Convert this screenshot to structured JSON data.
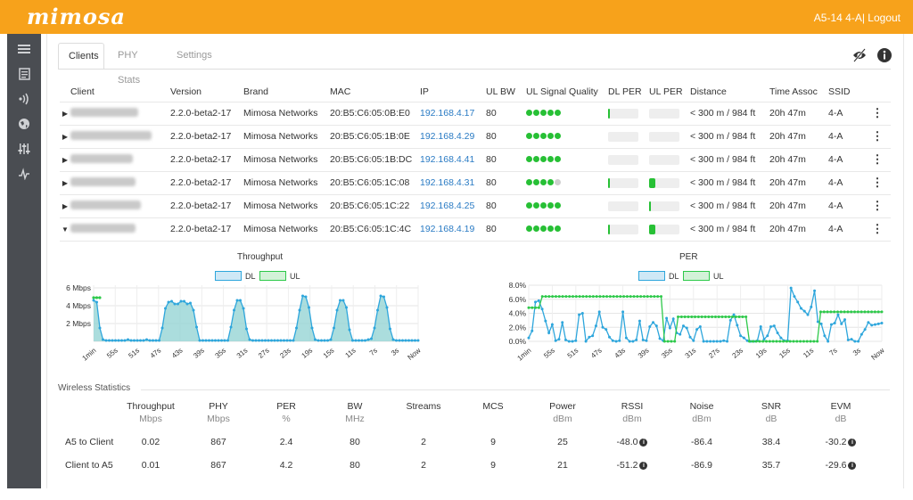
{
  "app": {
    "logo": "mimosa",
    "device": "A5-14 4-A",
    "separator": "|",
    "logout": "Logout"
  },
  "tabs": [
    "Clients",
    "PHY Stats",
    "Settings"
  ],
  "clients": {
    "headers": [
      "Client",
      "Version",
      "Brand",
      "MAC",
      "IP",
      "UL BW",
      "UL Signal Quality",
      "DL PER",
      "UL PER",
      "Distance",
      "Time Assoc",
      "SSID"
    ],
    "rows": [
      {
        "name": "Toni Stiltle",
        "version": "2.2.0-beta2-17",
        "brand": "Mimosa Networks",
        "mac": "20:B5:C6:05:0B:E0",
        "ip": "192.168.4.17",
        "ulbw": "80",
        "quality": 5,
        "dlper": 0.05,
        "ulper": 0,
        "distance": "< 300 m / 984 ft",
        "time": "20h 47m",
        "ssid": "4-A",
        "expanded": false
      },
      {
        "name": "Luiquar-Ding Alex",
        "version": "2.2.0-beta2-17",
        "brand": "Mimosa Networks",
        "mac": "20:B5:C6:05:1B:0E",
        "ip": "192.168.4.29",
        "ulbw": "80",
        "quality": 5,
        "dlper": 0,
        "ulper": 0,
        "distance": "< 300 m / 984 ft",
        "time": "20h 47m",
        "ssid": "4-A",
        "expanded": false
      },
      {
        "name": "Henry Sure",
        "version": "2.2.0-beta2-17",
        "brand": "Mimosa Networks",
        "mac": "20:B5:C6:05:1B:DC",
        "ip": "192.168.4.41",
        "ulbw": "80",
        "quality": 5,
        "dlper": 0,
        "ulper": 0,
        "distance": "< 300 m / 984 ft",
        "time": "20h 47m",
        "ssid": "4-A",
        "expanded": false
      },
      {
        "name": "Soo Buhramm",
        "version": "2.2.0-beta2-17",
        "brand": "Mimosa Networks",
        "mac": "20:B5:C6:05:1C:08",
        "ip": "192.168.4.31",
        "ulbw": "80",
        "quality": 4,
        "dlper": 0.05,
        "ulper": 0.2,
        "distance": "< 300 m / 984 ft",
        "time": "20h 47m",
        "ssid": "4-A",
        "expanded": false
      },
      {
        "name": "Stanley Bison",
        "version": "2.2.0-beta2-17",
        "brand": "Mimosa Networks",
        "mac": "20:B5:C6:05:1C:22",
        "ip": "192.168.4.25",
        "ulbw": "80",
        "quality": 5,
        "dlper": 0,
        "ulper": 0.05,
        "distance": "< 300 m / 984 ft",
        "time": "20h 47m",
        "ssid": "4-A",
        "expanded": false
      },
      {
        "name": "Kevin Rouse",
        "version": "2.2.0-beta2-17",
        "brand": "Mimosa Networks",
        "mac": "20:B5:C6:05:1C:4C",
        "ip": "192.168.4.19",
        "ulbw": "80",
        "quality": 5,
        "dlper": 0.05,
        "ulper": 0.2,
        "distance": "< 300 m / 984 ft",
        "time": "20h 47m",
        "ssid": "4-A",
        "expanded": true
      }
    ]
  },
  "colors": {
    "dl": "#2ea6dc",
    "ul": "#2ec94a",
    "accent": "#f7a21b",
    "sidebar": "#4a4d52"
  },
  "chart_data": [
    {
      "type": "area",
      "title": "Throughput",
      "legend": [
        "DL",
        "UL"
      ],
      "x_ticks": [
        "1min",
        "55s",
        "51s",
        "47s",
        "43s",
        "39s",
        "35s",
        "31s",
        "27s",
        "23s",
        "19s",
        "15s",
        "11s",
        "7s",
        "3s",
        "Now"
      ],
      "y_ticks": [
        "6 Mbps",
        "4 Mbps",
        "2 Mbps"
      ],
      "ylim": [
        0,
        6.3
      ],
      "series": [
        {
          "name": "DL",
          "values": [
            4.6,
            4.4,
            1.5,
            0.2,
            0.1,
            0.1,
            0.1,
            0.1,
            0.1,
            0.1,
            0.1,
            0.2,
            0.1,
            0.1,
            0.1,
            0.1,
            0.1,
            0.2,
            0.1,
            0.1,
            0.1,
            0.1,
            1.5,
            3.7,
            4.4,
            4.5,
            4.2,
            4.2,
            4.5,
            4.5,
            4.2,
            4.3,
            3.5,
            1.6,
            0.1,
            0.1,
            0.1,
            0.1,
            0.1,
            0.1,
            0.1,
            0.1,
            0.1,
            0.1,
            1.6,
            3.5,
            4.6,
            4.6,
            3.7,
            1.4,
            0.2,
            0.1,
            0.1,
            0.1,
            0.1,
            0.1,
            0.1,
            0.1,
            0.1,
            0.1,
            0.1,
            0.1,
            0.1,
            0.1,
            0.1,
            1.5,
            3.5,
            5.1,
            5.0,
            3.8,
            1.5,
            0.2,
            0.1,
            0.1,
            0.1,
            0.1,
            0.2,
            1.5,
            3.5,
            4.6,
            4.6,
            3.8,
            1.3,
            0.1,
            0.1,
            0.1,
            0.1,
            0.1,
            0.2,
            0.3,
            1.5,
            3.5,
            5.1,
            5.0,
            3.8,
            1.4,
            0.2,
            0.1,
            0.1,
            0.1,
            0.1,
            0.1,
            0.1,
            0.1,
            0.1
          ],
          "ul_values": [
            4.9,
            4.9,
            4.9
          ]
        }
      ],
      "ul": [
        4.9,
        4.9,
        4.9
      ]
    },
    {
      "type": "line",
      "title": "PER",
      "legend": [
        "DL",
        "UL"
      ],
      "x_ticks": [
        "1min",
        "55s",
        "51s",
        "47s",
        "43s",
        "39s",
        "35s",
        "31s",
        "27s",
        "23s",
        "19s",
        "15s",
        "11s",
        "7s",
        "3s",
        "Now"
      ],
      "y_ticks": [
        "8.0%",
        "6.0%",
        "4.0%",
        "2.0%",
        "0.0%"
      ],
      "ylim": [
        0,
        8
      ],
      "series": [
        {
          "name": "DL",
          "values": [
            0.5,
            1.5,
            5.6,
            5.8,
            4.6,
            2.9,
            1.2,
            2.4,
            0.1,
            0.3,
            2.7,
            0.2,
            0.0,
            0.0,
            0.1,
            3.8,
            4.0,
            0.0,
            0.6,
            0.8,
            2.2,
            4.2,
            2.0,
            1.7,
            0.6,
            0.1,
            0.0,
            0.1,
            4.2,
            0.5,
            0.0,
            0.0,
            0.2,
            2.9,
            0.2,
            0.1,
            2.1,
            2.7,
            2.2,
            0.4,
            0.1,
            3.3,
            1.9,
            3.2,
            1.2,
            1.0,
            2.2,
            1.9,
            0.6,
            0.1,
            1.7,
            2.1,
            0.0,
            0.0,
            0.0,
            0.0,
            0.0,
            0.0,
            0.1,
            0.0,
            3.0,
            3.8,
            2.3,
            0.8,
            0.5,
            0.1,
            0.0,
            0.0,
            0.1,
            2.1,
            0.3,
            0.8,
            2.1,
            2.2,
            1.2,
            0.5,
            0.1,
            0.1,
            7.6,
            6.4,
            5.6,
            4.7,
            4.3,
            3.8,
            4.9,
            7.2,
            2.8,
            2.5,
            0.8,
            0.0,
            2.4,
            2.6,
            3.8,
            2.5,
            3.1,
            0.2,
            0.3,
            0.0,
            0.0,
            1.0,
            1.7,
            2.7,
            2.3,
            2.4,
            2.5,
            2.6
          ]
        },
        {
          "name": "UL",
          "values": [
            4.8,
            4.8,
            4.8,
            4.8,
            6.4,
            6.4,
            6.4,
            6.4,
            6.4,
            6.4,
            6.4,
            6.4,
            6.4,
            6.4,
            6.4,
            6.4,
            6.4,
            6.4,
            6.4,
            6.4,
            6.4,
            6.4,
            6.4,
            6.4,
            6.4,
            6.4,
            6.4,
            6.4,
            6.4,
            6.4,
            6.4,
            6.4,
            6.4,
            6.4,
            6.4,
            6.4,
            6.4,
            6.4,
            6.4,
            6.4,
            0.0,
            0.0,
            0.0,
            0.0,
            3.5,
            3.5,
            3.5,
            3.5,
            3.5,
            3.5,
            3.5,
            3.5,
            3.5,
            3.5,
            3.5,
            3.5,
            3.5,
            3.5,
            3.5,
            3.5,
            3.5,
            3.5,
            3.5,
            3.5,
            3.5,
            0.0,
            0.0,
            0.0,
            0.0,
            0.0,
            0.0,
            0.0,
            0.0,
            0.0,
            0.0,
            0.0,
            0.0,
            0.0,
            0.0,
            0.0,
            0.0,
            0.0,
            0.0,
            0.0,
            0.0,
            0.0,
            4.2,
            4.2,
            4.2,
            4.2,
            4.2,
            4.2,
            4.2,
            4.2,
            4.2,
            4.2,
            4.2,
            4.2,
            4.2,
            4.2,
            4.2,
            4.2,
            4.2,
            4.2,
            4.2
          ]
        }
      ]
    }
  ],
  "wireless": {
    "title": "Wireless Statistics",
    "columns": [
      {
        "name": "Throughput",
        "unit": "Mbps"
      },
      {
        "name": "PHY",
        "unit": "Mbps"
      },
      {
        "name": "PER",
        "unit": "%"
      },
      {
        "name": "BW",
        "unit": "MHz"
      },
      {
        "name": "Streams",
        "unit": ""
      },
      {
        "name": "MCS",
        "unit": ""
      },
      {
        "name": "Power",
        "unit": "dBm"
      },
      {
        "name": "RSSI",
        "unit": "dBm"
      },
      {
        "name": "Noise",
        "unit": "dBm"
      },
      {
        "name": "SNR",
        "unit": "dB"
      },
      {
        "name": "EVM",
        "unit": "dB"
      }
    ],
    "rows": [
      {
        "label": "A5 to Client",
        "values": [
          "0.02",
          "867",
          "2.4",
          "80",
          "2",
          "9",
          "25",
          "-48.0",
          "-86.4",
          "38.4",
          "-30.2"
        ]
      },
      {
        "label": "Client to A5",
        "values": [
          "0.01",
          "867",
          "4.2",
          "80",
          "2",
          "9",
          "21",
          "-51.2",
          "-86.9",
          "35.7",
          "-29.6"
        ]
      }
    ]
  }
}
